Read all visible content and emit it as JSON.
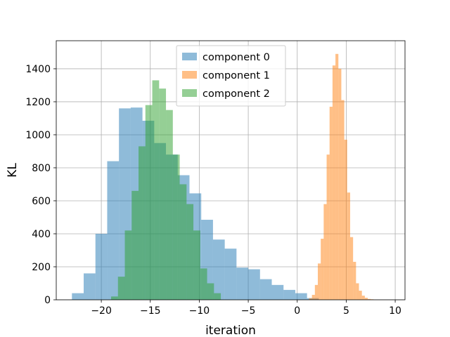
{
  "chart_data": {
    "type": "histogram",
    "title": "",
    "xlabel": "iteration",
    "ylabel": "KL",
    "xlim": [
      -24.6,
      11.0
    ],
    "ylim": [
      0,
      1570
    ],
    "xticks": [
      -20,
      -15,
      -10,
      -5,
      0,
      5,
      10
    ],
    "xtick_labels": [
      "−20",
      "−15",
      "−10",
      "−5",
      "0",
      "5",
      "10"
    ],
    "yticks": [
      0,
      200,
      400,
      600,
      800,
      1000,
      1200,
      1400
    ],
    "ytick_labels": [
      "0",
      "200",
      "400",
      "600",
      "800",
      "1000",
      "1200",
      "1400"
    ],
    "grid": true,
    "legend_position": "top-center",
    "alpha": 0.5,
    "series": [
      {
        "name": "component 0",
        "color": "#1f77b4",
        "bin_edges": [
          -23.0,
          -21.8,
          -20.6,
          -19.4,
          -18.2,
          -17.0,
          -15.8,
          -14.6,
          -13.4,
          -12.2,
          -11.0,
          -9.8,
          -8.6,
          -7.4,
          -6.2,
          -5.0,
          -3.8,
          -2.6,
          -1.4,
          -0.2,
          1.0,
          2.2
        ],
        "values": [
          40,
          160,
          400,
          840,
          1160,
          1165,
          1085,
          950,
          880,
          755,
          645,
          485,
          365,
          310,
          195,
          185,
          125,
          90,
          60,
          40,
          10
        ]
      },
      {
        "name": "component 1",
        "color": "#ff7f0e",
        "bin_edges": [
          1.2,
          1.5,
          1.8,
          2.1,
          2.4,
          2.7,
          3.0,
          3.3,
          3.6,
          3.9,
          4.2,
          4.5,
          4.8,
          5.1,
          5.4,
          5.7,
          6.0,
          6.3,
          6.6,
          6.9,
          7.2,
          7.5,
          7.8
        ],
        "values": [
          10,
          30,
          90,
          220,
          370,
          580,
          880,
          1170,
          1420,
          1490,
          1400,
          1210,
          970,
          650,
          380,
          230,
          100,
          55,
          25,
          12,
          5,
          3
        ]
      },
      {
        "name": "component 2",
        "color": "#2ca02c",
        "bin_edges": [
          -19.0,
          -18.3,
          -17.6,
          -16.9,
          -16.2,
          -15.5,
          -14.8,
          -14.1,
          -13.4,
          -12.7,
          -12.0,
          -11.3,
          -10.6,
          -9.9,
          -9.2,
          -8.5,
          -7.8
        ],
        "values": [
          20,
          140,
          420,
          660,
          930,
          1180,
          1330,
          1280,
          1150,
          880,
          700,
          580,
          420,
          190,
          100,
          40
        ]
      }
    ]
  }
}
